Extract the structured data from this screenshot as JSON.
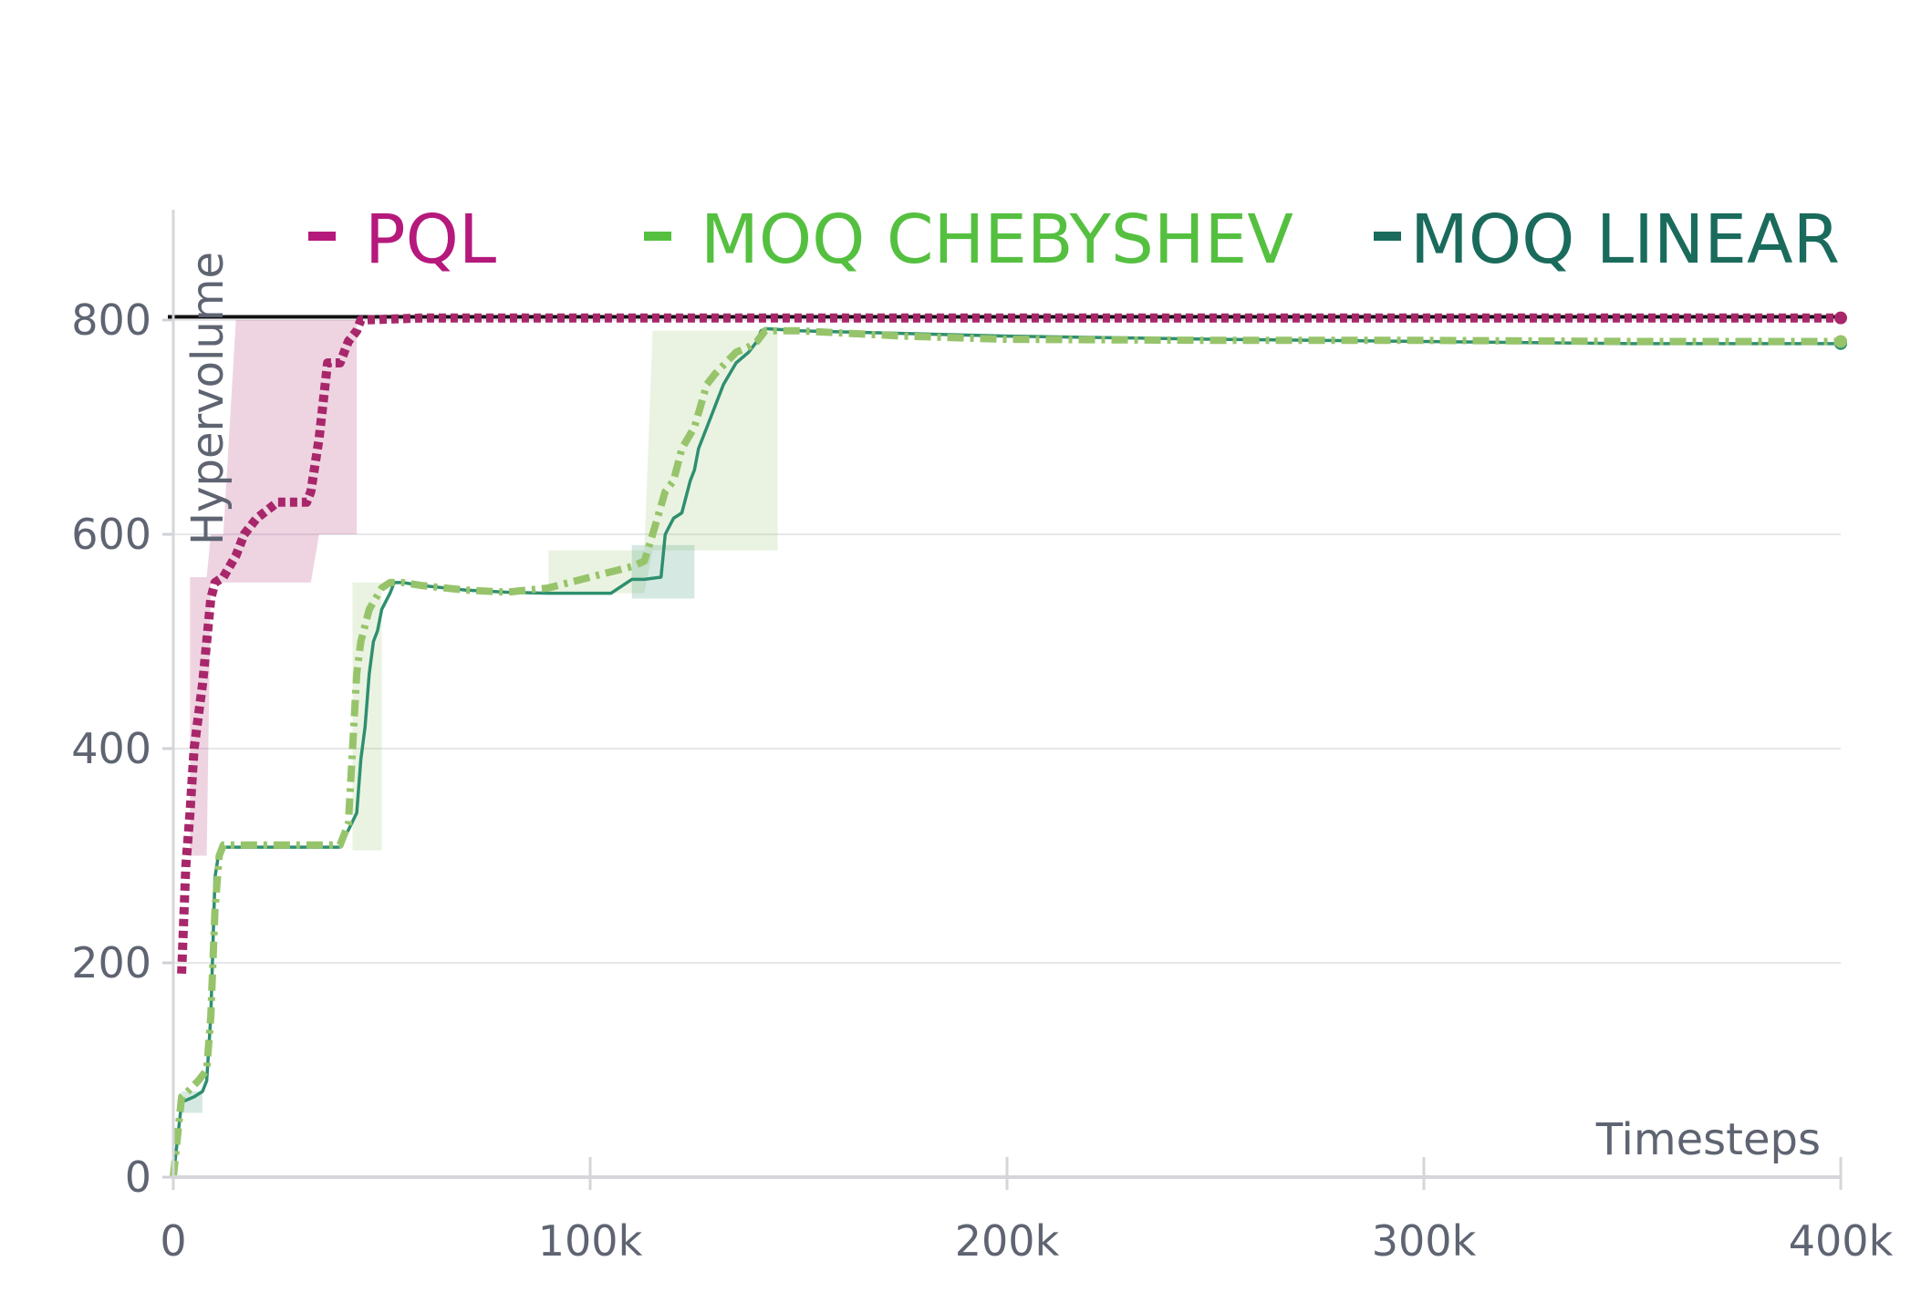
{
  "chart_data": {
    "type": "line",
    "xlabel": "Timesteps",
    "ylabel": "Hypervolume",
    "xlim": [
      0,
      400000
    ],
    "ylim": [
      0,
      900
    ],
    "x_ticks": [
      {
        "value": 0,
        "label": "0"
      },
      {
        "value": 100000,
        "label": "100k"
      },
      {
        "value": 200000,
        "label": "200k"
      },
      {
        "value": 300000,
        "label": "300k"
      },
      {
        "value": 400000,
        "label": "400k"
      }
    ],
    "y_ticks": [
      {
        "value": 0,
        "label": "0"
      },
      {
        "value": 200,
        "label": "200"
      },
      {
        "value": 400,
        "label": "400"
      },
      {
        "value": 600,
        "label": "600"
      },
      {
        "value": 800,
        "label": "800"
      }
    ],
    "grid": true,
    "legend_position": "top",
    "reference_line": {
      "y": 803,
      "color": "#111111"
    },
    "series": [
      {
        "name": "PQL",
        "color": "#a8276b",
        "legend_color": "#b5197c",
        "style": "dotted",
        "x": [
          2000,
          3000,
          4000,
          5000,
          6000,
          7000,
          8000,
          9000,
          10000,
          12000,
          15000,
          17000,
          20000,
          25000,
          30000,
          32000,
          33000,
          35000,
          37000,
          40000,
          42000,
          44000,
          45000,
          60000,
          100000,
          150000,
          200000,
          300000,
          400000
        ],
        "values": [
          190,
          290,
          340,
          400,
          430,
          460,
          500,
          540,
          555,
          560,
          580,
          600,
          615,
          630,
          630,
          630,
          640,
          690,
          760,
          760,
          780,
          790,
          800,
          802,
          802,
          802,
          802,
          802,
          802
        ],
        "band_upper": [
          null,
          null,
          560,
          560,
          560,
          560,
          560,
          600,
          600,
          600,
          800,
          800,
          800,
          800,
          800,
          800,
          800,
          800,
          800,
          800,
          800,
          800,
          800,
          null,
          null,
          null,
          null,
          null,
          null
        ],
        "band_lower": [
          null,
          null,
          300,
          300,
          300,
          300,
          300,
          555,
          555,
          555,
          555,
          555,
          555,
          555,
          555,
          555,
          555,
          600,
          600,
          600,
          600,
          600,
          null,
          null,
          null,
          null,
          null,
          null,
          null
        ]
      },
      {
        "name": "MOQ CHEBYSHEV",
        "color": "#97c46b",
        "legend_color": "#55c040",
        "style": "dashdot",
        "x": [
          0,
          2000,
          3000,
          6000,
          8000,
          9000,
          10000,
          11000,
          12000,
          20000,
          30000,
          40000,
          42000,
          43000,
          44000,
          45000,
          47000,
          50000,
          52000,
          55000,
          60000,
          70000,
          80000,
          90000,
          100000,
          105000,
          110000,
          113000,
          115000,
          118000,
          120000,
          122000,
          125000,
          128000,
          130000,
          135000,
          138000,
          140000,
          142000,
          145000,
          150000,
          175000,
          200000,
          250000,
          300000,
          350000,
          400000
        ],
        "values": [
          0,
          75,
          78,
          90,
          100,
          150,
          250,
          300,
          310,
          310,
          310,
          310,
          330,
          400,
          470,
          500,
          530,
          550,
          555,
          555,
          552,
          548,
          546,
          550,
          560,
          565,
          570,
          575,
          600,
          640,
          650,
          680,
          700,
          740,
          750,
          770,
          775,
          780,
          790,
          790,
          790,
          785,
          782,
          781,
          781,
          780,
          780
        ],
        "band_upper": [
          null,
          null,
          null,
          null,
          null,
          null,
          null,
          null,
          null,
          null,
          null,
          null,
          null,
          555,
          555,
          555,
          555,
          555,
          null,
          null,
          null,
          null,
          null,
          585,
          585,
          585,
          585,
          585,
          790,
          790,
          790,
          790,
          790,
          790,
          790,
          790,
          790,
          790,
          790,
          790,
          null,
          null,
          null,
          null,
          null,
          null,
          null
        ],
        "band_lower": [
          null,
          null,
          null,
          null,
          null,
          null,
          null,
          null,
          null,
          null,
          null,
          null,
          null,
          305,
          305,
          305,
          305,
          305,
          null,
          null,
          null,
          null,
          null,
          545,
          545,
          545,
          545,
          545,
          585,
          585,
          585,
          585,
          585,
          585,
          585,
          585,
          585,
          585,
          585,
          585,
          null,
          null,
          null,
          null,
          null,
          null,
          null
        ]
      },
      {
        "name": "MOQ LINEAR",
        "color": "#2e8f70",
        "legend_color": "#1a6b5c",
        "style": "solid",
        "x": [
          0,
          2000,
          5000,
          7000,
          8000,
          9000,
          10000,
          11000,
          12000,
          20000,
          30000,
          40000,
          44000,
          45000,
          46000,
          47000,
          48000,
          49000,
          50000,
          52000,
          53000,
          55000,
          60000,
          70000,
          80000,
          90000,
          100000,
          105000,
          110000,
          113000,
          117000,
          118000,
          120000,
          122000,
          124000,
          125000,
          126000,
          128000,
          130000,
          132000,
          135000,
          138000,
          140000,
          141000,
          142000,
          150000,
          200000,
          250000,
          300000,
          350000,
          400000
        ],
        "values": [
          0,
          70,
          75,
          80,
          90,
          150,
          280,
          305,
          308,
          308,
          308,
          308,
          340,
          390,
          420,
          470,
          500,
          510,
          530,
          545,
          555,
          555,
          552,
          548,
          546,
          545,
          545,
          545,
          558,
          558,
          560,
          600,
          615,
          620,
          650,
          660,
          680,
          700,
          720,
          740,
          760,
          770,
          780,
          790,
          792,
          790,
          785,
          782,
          780,
          778,
          778
        ],
        "band_upper": [
          null,
          80,
          80,
          80,
          null,
          null,
          null,
          null,
          null,
          null,
          null,
          null,
          null,
          null,
          null,
          null,
          null,
          null,
          null,
          null,
          null,
          null,
          null,
          null,
          null,
          null,
          null,
          null,
          590,
          590,
          590,
          590,
          590,
          590,
          590,
          590,
          null,
          null,
          null,
          null,
          null,
          null,
          null,
          null,
          null,
          null,
          null,
          null,
          null,
          null,
          null
        ],
        "band_lower": [
          null,
          60,
          60,
          60,
          null,
          null,
          null,
          null,
          null,
          null,
          null,
          null,
          null,
          null,
          null,
          null,
          null,
          null,
          null,
          null,
          null,
          null,
          null,
          null,
          null,
          null,
          null,
          null,
          540,
          540,
          540,
          540,
          540,
          540,
          540,
          540,
          null,
          null,
          null,
          null,
          null,
          null,
          null,
          null,
          null,
          null,
          null,
          null,
          null,
          null,
          null
        ]
      }
    ]
  }
}
